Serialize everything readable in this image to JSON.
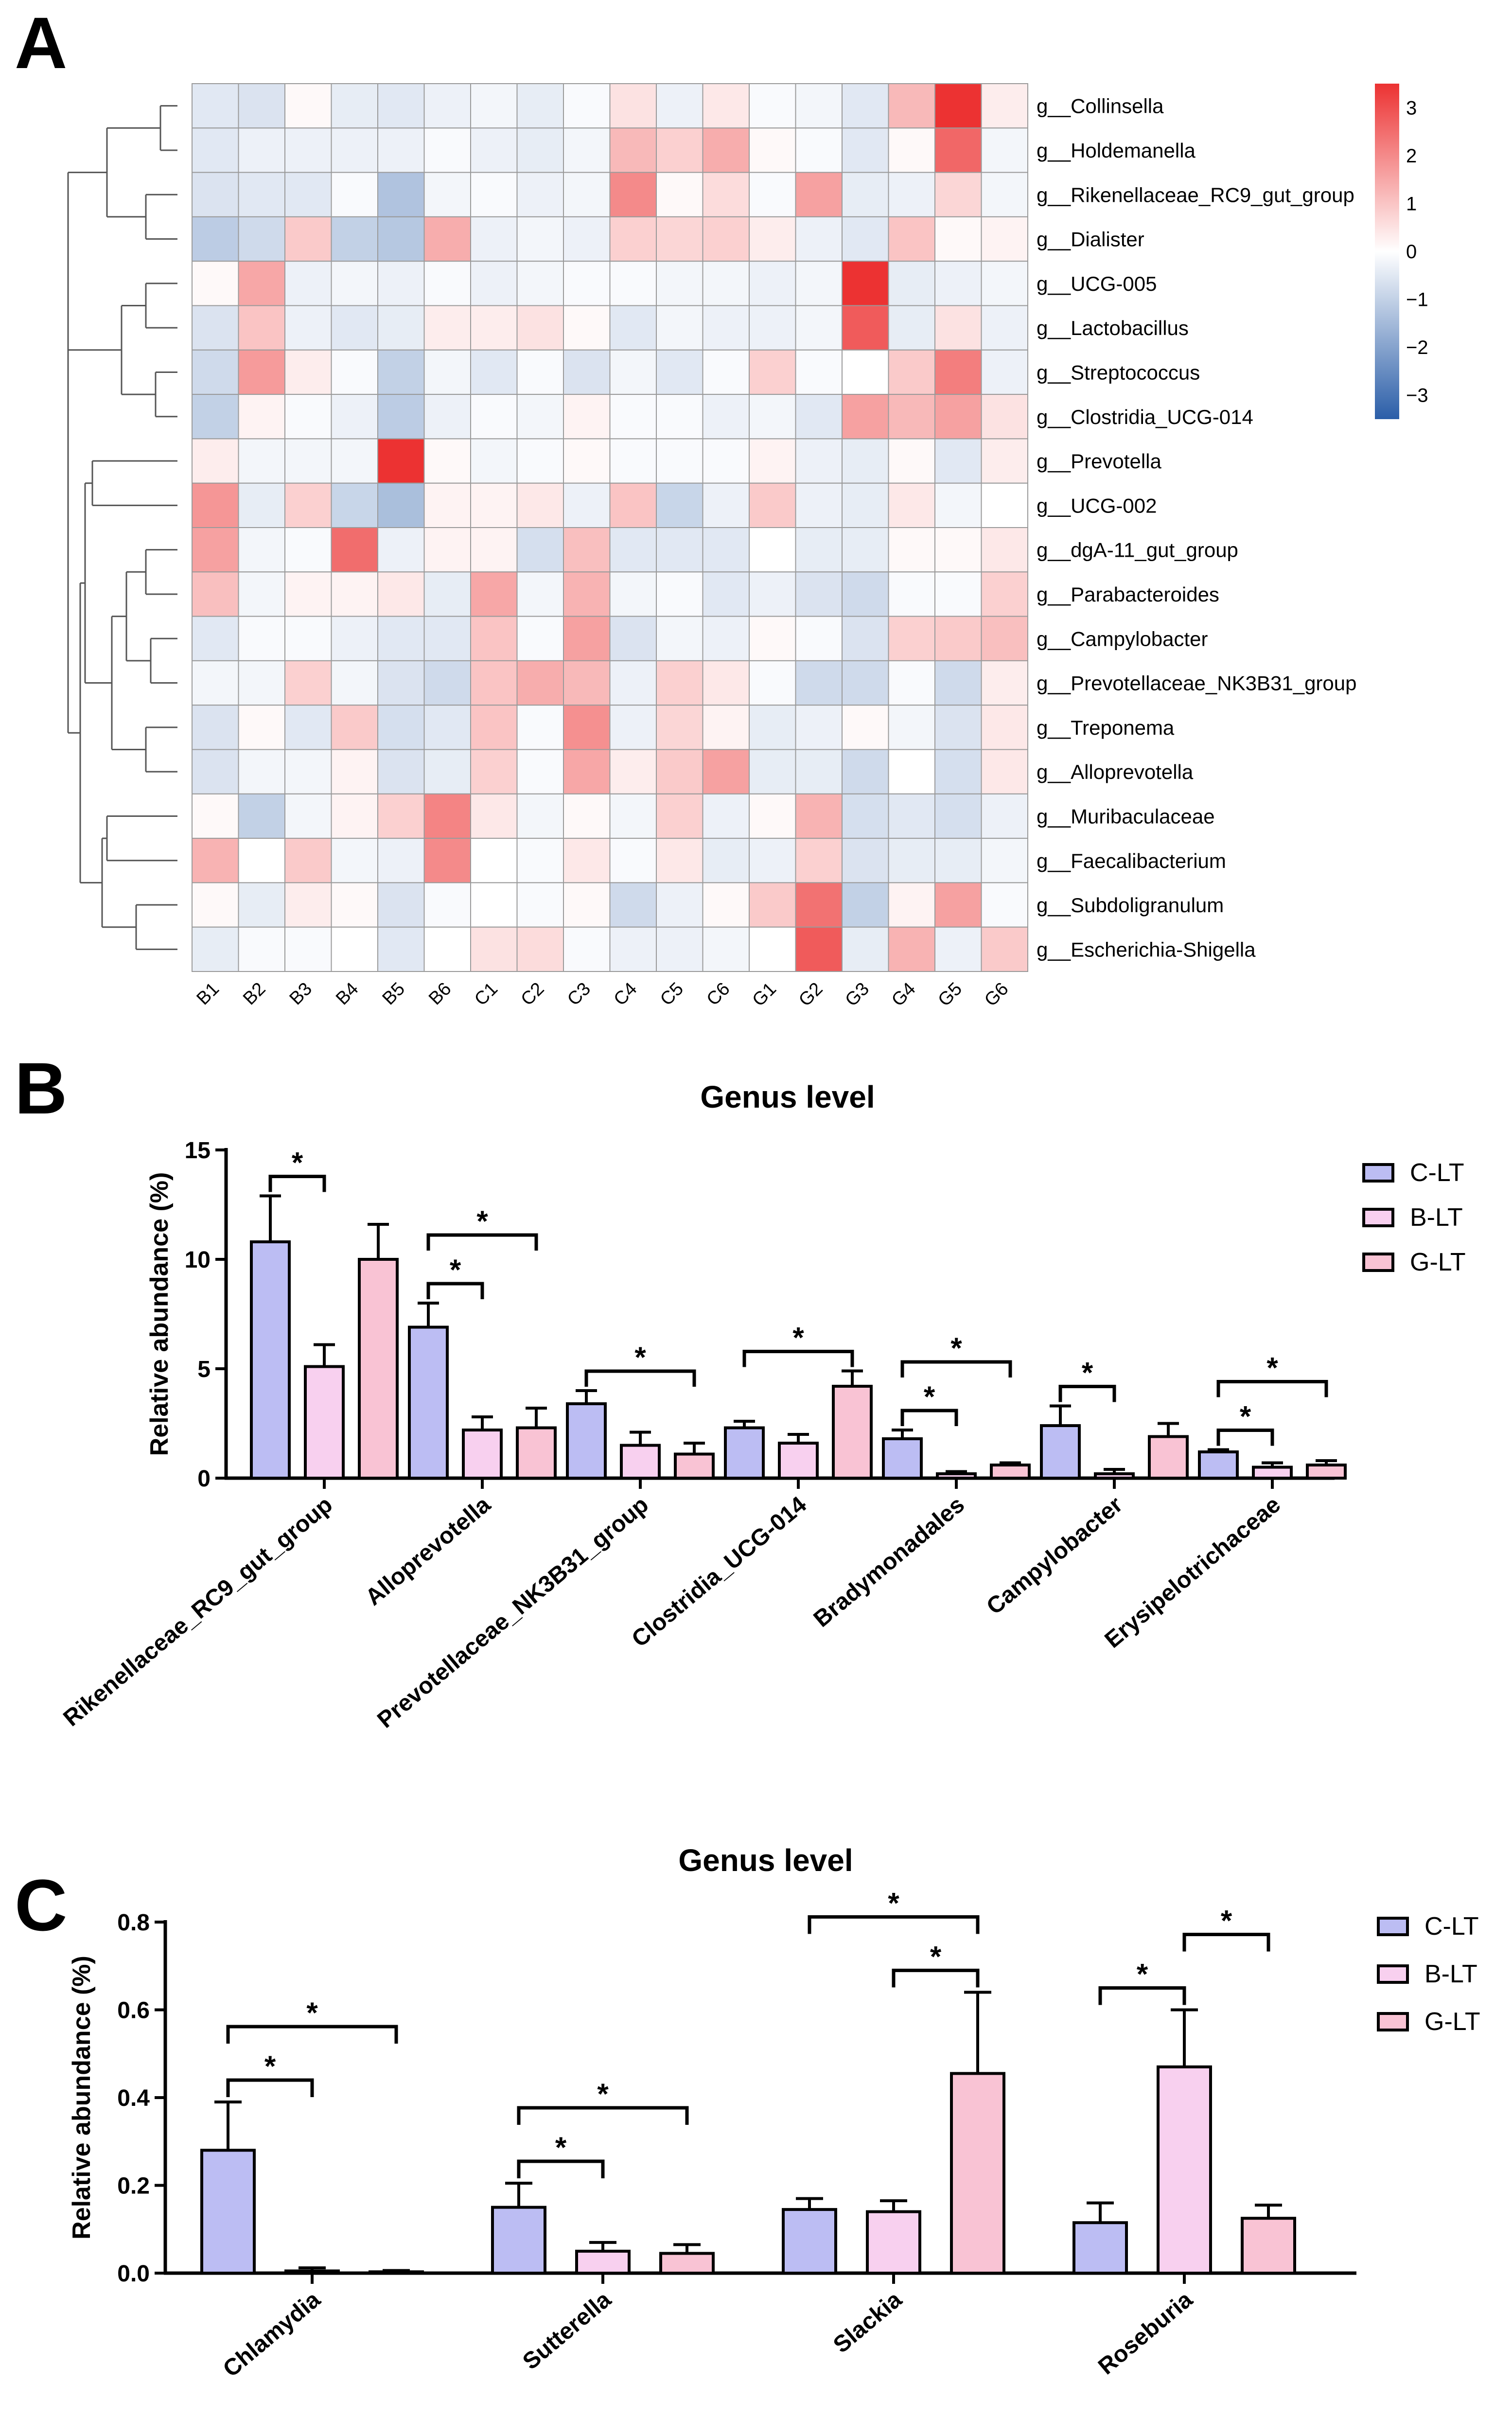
{
  "panels": {
    "a": "A",
    "b": "B",
    "c": "C"
  },
  "colors": {
    "C-LT": "#bcbdf3",
    "B-LT": "#f8d0ef",
    "G-LT": "#f9c3d4",
    "heat_low": "#2b5ea8",
    "heat_mid": "#ffffff",
    "heat_high": "#ec3232"
  },
  "chart_data": [
    {
      "type": "heatmap",
      "rows": [
        "g__Collinsella",
        "g__Holdemanella",
        "g__Rikenellaceae_RC9_gut_group",
        "g__Dialister",
        "g__UCG-005",
        "g__Lactobacillus",
        "g__Streptococcus",
        "g__Clostridia_UCG-014",
        "g__Prevotella",
        "g__UCG-002",
        "g__dgA-11_gut_group",
        "g__Parabacteroides",
        "g__Campylobacter",
        "g__Prevotellaceae_NK3B31_group",
        "g__Treponema",
        "g__Alloprevotella",
        "g__Muribaculaceae",
        "g__Faecalibacterium",
        "g__Subdoligranulum",
        "g__Escherichia-Shigella"
      ],
      "columns": [
        "B1",
        "B2",
        "B3",
        "B4",
        "B5",
        "B6",
        "C1",
        "C2",
        "C3",
        "C4",
        "C5",
        "C6",
        "G1",
        "G2",
        "G3",
        "G4",
        "G5",
        "G6"
      ],
      "values": [
        [
          -0.5,
          -0.6,
          0.1,
          -0.4,
          -0.5,
          -0.3,
          -0.2,
          -0.4,
          -0.1,
          0.5,
          -0.3,
          0.4,
          -0.1,
          -0.2,
          -0.5,
          1.2,
          3.5,
          0.3
        ],
        [
          -0.5,
          -0.3,
          -0.3,
          -0.3,
          -0.3,
          -0.1,
          -0.3,
          -0.4,
          -0.2,
          1.2,
          0.8,
          1.4,
          0.1,
          -0.1,
          -0.5,
          0.1,
          2.6,
          -0.2
        ],
        [
          -0.6,
          -0.5,
          -0.5,
          -0.1,
          -1.3,
          -0.2,
          -0.1,
          -0.3,
          -0.2,
          2.0,
          0.1,
          0.6,
          -0.1,
          1.6,
          -0.4,
          -0.3,
          0.7,
          -0.2
        ],
        [
          -1.1,
          -0.8,
          0.9,
          -1.0,
          -1.2,
          1.4,
          -0.3,
          -0.2,
          -0.3,
          0.8,
          0.7,
          0.8,
          0.3,
          -0.3,
          -0.5,
          1.0,
          0.1,
          0.2
        ],
        [
          0.1,
          1.5,
          -0.3,
          -0.2,
          -0.3,
          -0.1,
          -0.3,
          -0.2,
          -0.1,
          -0.1,
          -0.2,
          -0.2,
          -0.3,
          -0.2,
          3.6,
          -0.4,
          -0.3,
          -0.2
        ],
        [
          -0.6,
          1.0,
          -0.3,
          -0.5,
          -0.4,
          0.3,
          0.3,
          0.5,
          0.1,
          -0.5,
          -0.2,
          -0.3,
          -0.3,
          -0.2,
          2.8,
          -0.4,
          0.5,
          -0.3
        ],
        [
          -0.8,
          1.7,
          0.3,
          -0.1,
          -1.0,
          -0.2,
          -0.5,
          -0.1,
          -0.6,
          -0.2,
          -0.5,
          -0.1,
          0.8,
          -0.1,
          0.0,
          0.9,
          2.2,
          -0.3
        ],
        [
          -1.0,
          0.2,
          -0.1,
          -0.3,
          -1.1,
          -0.3,
          -0.1,
          -0.2,
          0.2,
          -0.1,
          -0.1,
          -0.3,
          -0.2,
          -0.5,
          1.6,
          1.2,
          1.6,
          0.5
        ],
        [
          0.3,
          -0.2,
          -0.2,
          -0.2,
          3.8,
          0.1,
          -0.2,
          -0.1,
          0.1,
          -0.1,
          -0.1,
          -0.1,
          0.2,
          -0.3,
          -0.4,
          0.1,
          -0.5,
          0.3
        ],
        [
          1.8,
          -0.4,
          0.8,
          -0.9,
          -1.4,
          0.2,
          0.2,
          0.4,
          -0.3,
          1.0,
          -0.9,
          -0.3,
          0.9,
          -0.3,
          -0.4,
          0.4,
          -0.2,
          0.0
        ],
        [
          1.6,
          -0.2,
          -0.1,
          2.5,
          -0.3,
          0.2,
          0.2,
          -0.7,
          1.1,
          -0.5,
          -0.5,
          -0.5,
          0.0,
          -0.4,
          -0.4,
          0.1,
          0.1,
          0.4
        ],
        [
          1.1,
          -0.2,
          0.2,
          0.2,
          0.4,
          -0.4,
          1.5,
          -0.2,
          1.3,
          -0.2,
          -0.1,
          -0.5,
          -0.3,
          -0.6,
          -0.8,
          -0.1,
          -0.1,
          0.8
        ],
        [
          -0.5,
          -0.1,
          -0.1,
          -0.3,
          -0.5,
          -0.5,
          1.0,
          -0.1,
          1.6,
          -0.6,
          -0.2,
          -0.3,
          0.1,
          -0.1,
          -0.6,
          0.8,
          0.9,
          1.1
        ],
        [
          -0.2,
          -0.2,
          0.8,
          -0.2,
          -0.6,
          -0.8,
          1.0,
          1.4,
          1.2,
          -0.3,
          0.8,
          0.4,
          -0.1,
          -0.8,
          -0.8,
          -0.1,
          -0.8,
          0.3
        ],
        [
          -0.6,
          0.1,
          -0.5,
          0.9,
          -0.7,
          -0.5,
          1.0,
          -0.1,
          1.9,
          -0.3,
          0.7,
          0.2,
          -0.4,
          -0.3,
          0.1,
          -0.2,
          -0.6,
          0.4
        ],
        [
          -0.6,
          -0.2,
          -0.2,
          0.2,
          -0.6,
          -0.4,
          0.8,
          -0.1,
          1.5,
          0.3,
          0.9,
          1.6,
          -0.4,
          -0.4,
          -0.8,
          0.0,
          -0.7,
          0.4
        ],
        [
          0.1,
          -1.0,
          -0.2,
          0.2,
          0.8,
          2.1,
          0.4,
          -0.2,
          0.1,
          -0.2,
          0.8,
          -0.3,
          0.1,
          1.3,
          -0.7,
          -0.5,
          -0.7,
          -0.3
        ],
        [
          1.3,
          0.0,
          0.9,
          -0.2,
          -0.3,
          2.0,
          0.0,
          -0.1,
          0.4,
          -0.1,
          0.4,
          -0.4,
          -0.3,
          0.8,
          -0.6,
          -0.4,
          -0.4,
          -0.2
        ],
        [
          0.1,
          -0.4,
          0.3,
          0.1,
          -0.6,
          -0.1,
          0.0,
          -0.1,
          0.1,
          -0.8,
          -0.3,
          0.1,
          0.9,
          2.4,
          -1.0,
          0.2,
          1.6,
          -0.1
        ],
        [
          -0.4,
          -0.1,
          -0.1,
          0.0,
          -0.5,
          0.0,
          0.5,
          0.6,
          -0.1,
          -0.3,
          -0.3,
          -0.2,
          0.0,
          2.8,
          -0.4,
          1.3,
          -0.3,
          0.9
        ]
      ],
      "scale": {
        "min": -3.5,
        "max": 3.5,
        "ticks": [
          "3",
          "2",
          "1",
          "0",
          "−1",
          "−2",
          "−3"
        ]
      }
    },
    {
      "type": "bar",
      "title": "Genus level",
      "ylabel": "Relative abundance (%)",
      "ylim": [
        0,
        15
      ],
      "yticks": [
        "0",
        "5",
        "10",
        "15"
      ],
      "categories": [
        "Rikenellaceae_RC9_gut_group",
        "Alloprevotella",
        "Prevotellaceae_NK3B31_group",
        "Clostridia_UCG-014",
        "Bradymonadales",
        "Campylobacter",
        "Erysipelotrichaceae"
      ],
      "series": [
        {
          "name": "C-LT",
          "values": [
            10.8,
            6.9,
            3.4,
            2.3,
            1.8,
            2.4,
            1.2
          ],
          "errors": [
            2.1,
            1.1,
            0.6,
            0.3,
            0.4,
            0.9,
            0.1
          ]
        },
        {
          "name": "B-LT",
          "values": [
            5.1,
            2.2,
            1.5,
            1.6,
            0.2,
            0.2,
            0.5
          ],
          "errors": [
            1.0,
            0.6,
            0.6,
            0.4,
            0.1,
            0.2,
            0.2
          ]
        },
        {
          "name": "G-LT",
          "values": [
            10.0,
            2.3,
            1.1,
            4.2,
            0.6,
            1.9,
            0.6
          ],
          "errors": [
            1.6,
            0.9,
            0.5,
            0.7,
            0.1,
            0.6,
            0.2
          ]
        }
      ],
      "significance": [
        {
          "category": 0,
          "from": 0,
          "to": 1,
          "label": "*"
        },
        {
          "category": 1,
          "from": 0,
          "to": 1,
          "label": "*"
        },
        {
          "category": 1,
          "from": 0,
          "to": 2,
          "label": "*"
        },
        {
          "category": 2,
          "from": 0,
          "to": 2,
          "label": "*"
        },
        {
          "category": 3,
          "from": 0,
          "to": 2,
          "label": "*"
        },
        {
          "category": 4,
          "from": 0,
          "to": 1,
          "label": "*"
        },
        {
          "category": 4,
          "from": 0,
          "to": 2,
          "label": "*"
        },
        {
          "category": 5,
          "from": 0,
          "to": 1,
          "label": "*"
        },
        {
          "category": 6,
          "from": 0,
          "to": 1,
          "label": "*"
        },
        {
          "category": 6,
          "from": 0,
          "to": 2,
          "label": "*"
        }
      ]
    },
    {
      "type": "bar",
      "title": "Genus level",
      "ylabel": "Relative abundance (%)",
      "ylim": [
        0,
        0.8
      ],
      "yticks": [
        "0.0",
        "0.2",
        "0.4",
        "0.6",
        "0.8"
      ],
      "categories": [
        "Chlamydia",
        "Sutterella",
        "Slackia",
        "Roseburia"
      ],
      "series": [
        {
          "name": "C-LT",
          "values": [
            0.28,
            0.15,
            0.145,
            0.115
          ],
          "errors": [
            0.11,
            0.055,
            0.025,
            0.045
          ]
        },
        {
          "name": "B-LT",
          "values": [
            0.005,
            0.05,
            0.14,
            0.47
          ],
          "errors": [
            0.007,
            0.02,
            0.025,
            0.13
          ]
        },
        {
          "name": "G-LT",
          "values": [
            0.003,
            0.045,
            0.455,
            0.125
          ],
          "errors": [
            0.003,
            0.02,
            0.185,
            0.03
          ]
        }
      ],
      "significance": [
        {
          "category": 0,
          "from": 0,
          "to": 1,
          "label": "*"
        },
        {
          "category": 0,
          "from": 0,
          "to": 2,
          "label": "*"
        },
        {
          "category": 1,
          "from": 0,
          "to": 1,
          "label": "*"
        },
        {
          "category": 1,
          "from": 0,
          "to": 2,
          "label": "*"
        },
        {
          "category": 2,
          "from": 1,
          "to": 2,
          "label": "*"
        },
        {
          "category": 2,
          "from": 0,
          "to": 2,
          "label": "*"
        },
        {
          "category": 3,
          "from": 0,
          "to": 1,
          "label": "*"
        },
        {
          "category": 3,
          "from": 1,
          "to": 2,
          "label": "*"
        }
      ]
    }
  ]
}
